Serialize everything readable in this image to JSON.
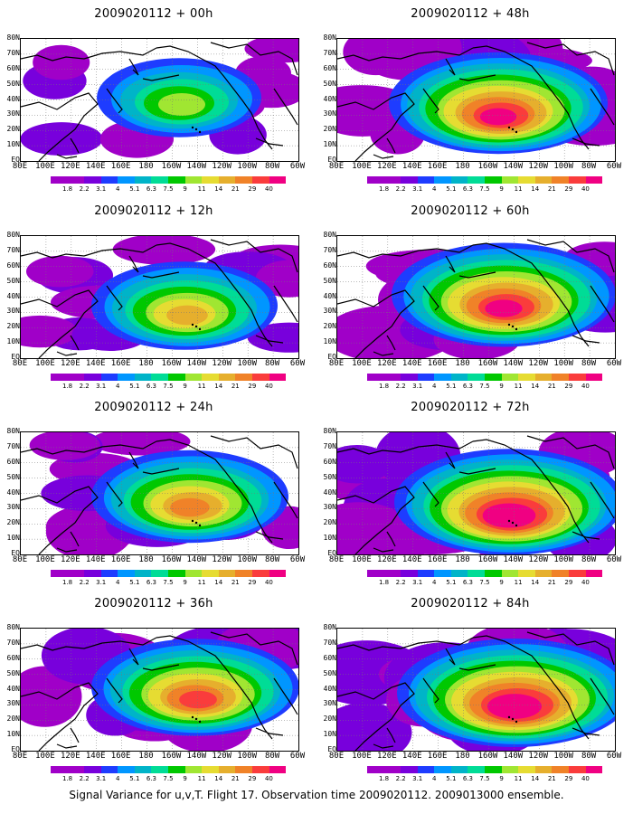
{
  "caption": "Signal Variance for u,v,T. Flight 17. Observation time 2009020112. 2009013000 ensemble.",
  "lat_labels": [
    "80N",
    "70N",
    "60N",
    "50N",
    "40N",
    "30N",
    "20N",
    "10N",
    "EQ"
  ],
  "lon_labels": [
    "80E",
    "100E",
    "120E",
    "140E",
    "160E",
    "180",
    "160W",
    "140W",
    "120W",
    "100W",
    "80W",
    "60W"
  ],
  "colorbar": {
    "levels": [
      "1.8",
      "2.2",
      "3.1",
      "4",
      "5.1",
      "6.3",
      "7.5",
      "9",
      "11",
      "14",
      "21",
      "29",
      "40"
    ],
    "colors": [
      "#a000c8",
      "#7800dc",
      "#1e3cff",
      "#0096ff",
      "#00b4c8",
      "#00dc96",
      "#00c800",
      "#a0e632",
      "#e6dc32",
      "#e6af2d",
      "#f08228",
      "#fa3c3c",
      "#f00082"
    ]
  },
  "panels": [
    {
      "title": "2009020112 + 00h",
      "intensity": 0.35
    },
    {
      "title": "2009020112 + 48h",
      "intensity": 0.85
    },
    {
      "title": "2009020112 + 12h",
      "intensity": 0.55
    },
    {
      "title": "2009020112 + 60h",
      "intensity": 0.9
    },
    {
      "title": "2009020112 + 24h",
      "intensity": 0.65
    },
    {
      "title": "2009020112 + 72h",
      "intensity": 0.95
    },
    {
      "title": "2009020112 + 36h",
      "intensity": 0.75
    },
    {
      "title": "2009020112 + 84h",
      "intensity": 1.0
    }
  ]
}
